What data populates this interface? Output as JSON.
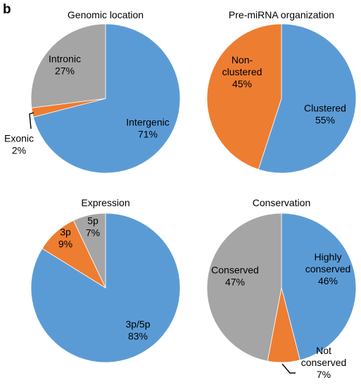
{
  "panel_label": "b",
  "chart_data": [
    {
      "type": "pie",
      "title": "Genomic location",
      "slices": [
        {
          "name": "Intergenic",
          "value": 71,
          "label": "71%",
          "color": "#5b9bd5"
        },
        {
          "name": "Exonic",
          "value": 2,
          "label": "2%",
          "color": "#ed7d31"
        },
        {
          "name": "Intronic",
          "value": 27,
          "label": "27%",
          "color": "#a5a5a5"
        }
      ]
    },
    {
      "type": "pie",
      "title": "Pre-miRNA organization",
      "slices": [
        {
          "name": "Clustered",
          "value": 55,
          "label": "55%",
          "color": "#5b9bd5"
        },
        {
          "name": "Non-\nclustered",
          "value": 45,
          "label": "45%",
          "color": "#ed7d31"
        }
      ]
    },
    {
      "type": "pie",
      "title": "Expression",
      "slices": [
        {
          "name": "3p/5p",
          "value": 83,
          "label": "83%",
          "color": "#5b9bd5"
        },
        {
          "name": "3p",
          "value": 9,
          "label": "9%",
          "color": "#ed7d31"
        },
        {
          "name": "5p",
          "value": 7,
          "label": "7%",
          "color": "#a5a5a5"
        }
      ]
    },
    {
      "type": "pie",
      "title": "Conservation",
      "slices": [
        {
          "name": "Highly\nconserved",
          "value": 46,
          "label": "46%",
          "color": "#5b9bd5"
        },
        {
          "name": "Not\nconserved",
          "value": 7,
          "label": "7%",
          "color": "#ed7d31"
        },
        {
          "name": "Conserved",
          "value": 47,
          "label": "47%",
          "color": "#a5a5a5"
        }
      ]
    }
  ]
}
